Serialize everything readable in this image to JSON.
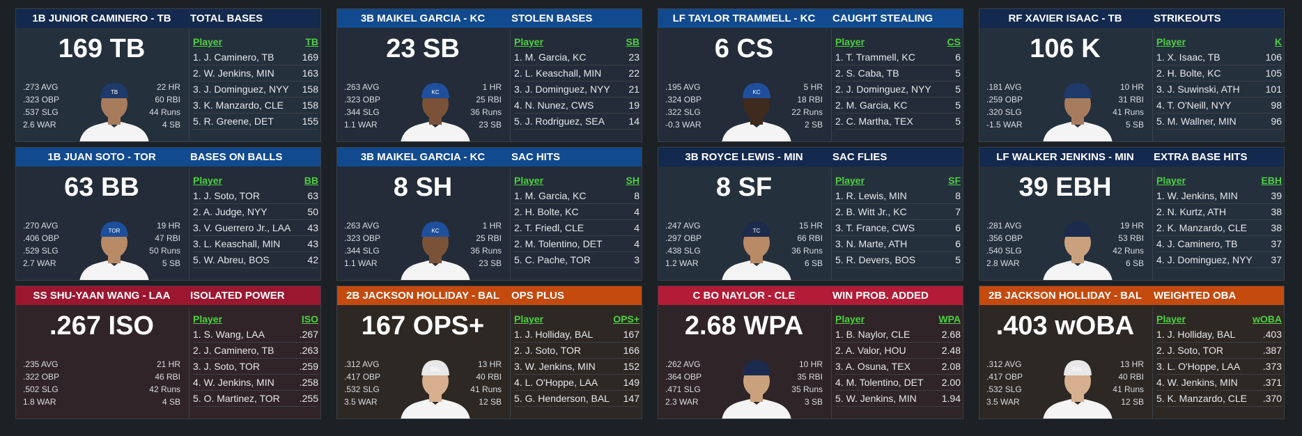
{
  "cards": [
    {
      "header": "1B JUNIOR CAMINERO - TB",
      "stat_title": "TOTAL BASES",
      "value": "169 TB",
      "avg": ".273 AVG",
      "obp": ".323 OBP",
      "slg": ".537 SLG",
      "war": "2.6 WAR",
      "hr": "22 HR",
      "rbi": "60 RBI",
      "runs": "44 Runs",
      "sb": "4 SB",
      "col_player": "Player",
      "col_stat": "TB",
      "rows": [
        {
          "name": "1. J. Caminero, TB",
          "val": "169"
        },
        {
          "name": "2. W. Jenkins, MIN",
          "val": "163"
        },
        {
          "name": "3. J. Dominguez, NYY",
          "val": "158"
        },
        {
          "name": "3. K. Manzardo, CLE",
          "val": "158"
        },
        {
          "name": "5. R. Greene, DET",
          "val": "155"
        }
      ],
      "theme": "navy",
      "cap": "#1d3a6b",
      "cap_logo": "TB",
      "shirt": "#f4f4f4",
      "skin": "#a77c5d"
    },
    {
      "header": "3B MAIKEL GARCIA - KC",
      "stat_title": "STOLEN BASES",
      "value": "23 SB",
      "avg": ".263 AVG",
      "obp": ".323 OBP",
      "slg": ".344 SLG",
      "war": "1.1 WAR",
      "hr": "1 HR",
      "rbi": "25 RBI",
      "runs": "36 Runs",
      "sb": "23 SB",
      "col_player": "Player",
      "col_stat": "SB",
      "rows": [
        {
          "name": "1. M. Garcia, KC",
          "val": "23"
        },
        {
          "name": "2. L. Keaschall, MIN",
          "val": "22"
        },
        {
          "name": "3. J. Dominguez, NYY",
          "val": "21"
        },
        {
          "name": "4. N. Nunez, CWS",
          "val": "19"
        },
        {
          "name": "5. J. Rodriguez, SEA",
          "val": "14"
        }
      ],
      "theme": "blue",
      "cap": "#1f4f9c",
      "cap_logo": "KC",
      "shirt": "#f4f4f4",
      "skin": "#7a5238"
    },
    {
      "header": "LF TAYLOR TRAMMELL - KC",
      "stat_title": "CAUGHT STEALING",
      "value": "6 CS",
      "avg": ".195 AVG",
      "obp": ".324 OBP",
      "slg": ".322 SLG",
      "war": "-0.3 WAR",
      "hr": "5 HR",
      "rbi": "18 RBI",
      "runs": "22 Runs",
      "sb": "2 SB",
      "col_player": "Player",
      "col_stat": "CS",
      "rows": [
        {
          "name": "1. T. Trammell, KC",
          "val": "6"
        },
        {
          "name": "2. S. Caba, TB",
          "val": "5"
        },
        {
          "name": "2. J. Dominguez, NYY",
          "val": "5"
        },
        {
          "name": "2. M. Garcia, KC",
          "val": "5"
        },
        {
          "name": "2. C. Martha, TEX",
          "val": "5"
        }
      ],
      "theme": "blue",
      "cap": "#1f4f9c",
      "cap_logo": "KC",
      "shirt": "#f4f4f4",
      "skin": "#3f2a1e"
    },
    {
      "header": "RF XAVIER ISAAC - TB",
      "stat_title": "STRIKEOUTS",
      "value": "106 K",
      "avg": ".181 AVG",
      "obp": ".259 OBP",
      "slg": ".320 SLG",
      "war": "-1.5 WAR",
      "hr": "10 HR",
      "rbi": "31 RBI",
      "runs": "41 Runs",
      "sb": "5 SB",
      "col_player": "Player",
      "col_stat": "K",
      "rows": [
        {
          "name": "1. X. Isaac, TB",
          "val": "106"
        },
        {
          "name": "2. H. Bolte, KC",
          "val": "105"
        },
        {
          "name": "3. J. Suwinski, ATH",
          "val": "101"
        },
        {
          "name": "4. T. O'Neill, NYY",
          "val": "98"
        },
        {
          "name": "5. M. Wallner, MIN",
          "val": "96"
        }
      ],
      "theme": "navy",
      "cap": "#1d3a6b",
      "cap_logo": "",
      "shirt": "#f4f4f4",
      "skin": "#a77c5d"
    },
    {
      "header": "1B JUAN SOTO - TOR",
      "stat_title": "BASES ON BALLS",
      "value": "63 BB",
      "avg": ".270 AVG",
      "obp": ".406 OBP",
      "slg": ".529 SLG",
      "war": "2.7 WAR",
      "hr": "19 HR",
      "rbi": "47 RBI",
      "runs": "50 Runs",
      "sb": "5 SB",
      "col_player": "Player",
      "col_stat": "BB",
      "rows": [
        {
          "name": "1. J. Soto, TOR",
          "val": "63"
        },
        {
          "name": "2. A. Judge, NYY",
          "val": "50"
        },
        {
          "name": "3. V. Guerrero Jr., LAA",
          "val": "43"
        },
        {
          "name": "3. L. Keaschall, MIN",
          "val": "43"
        },
        {
          "name": "5. W. Abreu, BOS",
          "val": "42"
        }
      ],
      "theme": "blue",
      "cap": "#1d4f9a",
      "cap_logo": "TOR",
      "shirt": "#f4f4f4",
      "skin": "#b88a66"
    },
    {
      "header": "3B MAIKEL GARCIA - KC",
      "stat_title": "SAC HITS",
      "value": "8 SH",
      "avg": ".263 AVG",
      "obp": ".323 OBP",
      "slg": ".344 SLG",
      "war": "1.1 WAR",
      "hr": "1 HR",
      "rbi": "25 RBI",
      "runs": "36 Runs",
      "sb": "23 SB",
      "col_player": "Player",
      "col_stat": "SH",
      "rows": [
        {
          "name": "1. M. Garcia, KC",
          "val": "8"
        },
        {
          "name": "2. H. Bolte, KC",
          "val": "4"
        },
        {
          "name": "2. T. Friedl, CLE",
          "val": "4"
        },
        {
          "name": "2. M. Tolentino, DET",
          "val": "4"
        },
        {
          "name": "5. C. Pache, TOR",
          "val": "3"
        }
      ],
      "theme": "blue",
      "cap": "#1f4f9c",
      "cap_logo": "KC",
      "shirt": "#f4f4f4",
      "skin": "#7a5238"
    },
    {
      "header": "3B ROYCE LEWIS - MIN",
      "stat_title": "SAC FLIES",
      "value": "8 SF",
      "avg": ".247 AVG",
      "obp": ".297 OBP",
      "slg": ".438 SLG",
      "war": "1.2 WAR",
      "hr": "15 HR",
      "rbi": "66 RBI",
      "runs": "36 Runs",
      "sb": "6 SB",
      "col_player": "Player",
      "col_stat": "SF",
      "rows": [
        {
          "name": "1. R. Lewis, MIN",
          "val": "8"
        },
        {
          "name": "2. B. Witt Jr., KC",
          "val": "7"
        },
        {
          "name": "3. T. France, CWS",
          "val": "6"
        },
        {
          "name": "3. N. Marte, ATH",
          "val": "6"
        },
        {
          "name": "5. R. Devers, BOS",
          "val": "5"
        }
      ],
      "theme": "navy",
      "cap": "#1c2b4d",
      "cap_logo": "TC",
      "shirt": "#f4f4f4",
      "skin": "#b88a66"
    },
    {
      "header": "LF WALKER JENKINS - MIN",
      "stat_title": "EXTRA BASE HITS",
      "value": "39 EBH",
      "avg": ".281 AVG",
      "obp": ".356 OBP",
      "slg": ".540 SLG",
      "war": "2.8 WAR",
      "hr": "19 HR",
      "rbi": "53 RBI",
      "runs": "42 Runs",
      "sb": "6 SB",
      "col_player": "Player",
      "col_stat": "EBH",
      "rows": [
        {
          "name": "1. W. Jenkins, MIN",
          "val": "39"
        },
        {
          "name": "2. N. Kurtz, ATH",
          "val": "38"
        },
        {
          "name": "2. K. Manzardo, CLE",
          "val": "38"
        },
        {
          "name": "4. J. Caminero, TB",
          "val": "37"
        },
        {
          "name": "4. J. Dominguez, NYY",
          "val": "37"
        }
      ],
      "theme": "navy",
      "cap": "#1c2b4d",
      "cap_logo": "",
      "shirt": "#f4f4f4",
      "skin": "#c9a27d"
    },
    {
      "header": "SS SHU-YAAN WANG - LAA",
      "stat_title": "ISOLATED POWER",
      "value": ".267 ISO",
      "avg": ".235 AVG",
      "obp": ".322 OBP",
      "slg": ".502 SLG",
      "war": "1.8 WAR",
      "hr": "21 HR",
      "rbi": "46 RBI",
      "runs": "42 Runs",
      "sb": "4 SB",
      "col_player": "Player",
      "col_stat": "ISO",
      "rows": [
        {
          "name": "1. S. Wang, LAA",
          "val": ".267"
        },
        {
          "name": "2. J. Caminero, TB",
          "val": ".263"
        },
        {
          "name": "3. J. Soto, TOR",
          "val": ".259"
        },
        {
          "name": "4. W. Jenkins, MIN",
          "val": ".258"
        },
        {
          "name": "5. O. Martinez, TOR",
          "val": ".255"
        }
      ],
      "theme": "red",
      "cap": "",
      "cap_logo": "",
      "shirt": "",
      "skin": ""
    },
    {
      "header": "2B JACKSON HOLLIDAY - BAL",
      "stat_title": "OPS PLUS",
      "value": "167 OPS+",
      "avg": ".312 AVG",
      "obp": ".417 OBP",
      "slg": ".532 SLG",
      "war": "3.5 WAR",
      "hr": "13 HR",
      "rbi": "40 RBI",
      "runs": "41 Runs",
      "sb": "12 SB",
      "col_player": "Player",
      "col_stat": "OPS+",
      "rows": [
        {
          "name": "1. J. Holliday, BAL",
          "val": "167"
        },
        {
          "name": "2. J. Soto, TOR",
          "val": "166"
        },
        {
          "name": "3. W. Jenkins, MIN",
          "val": "152"
        },
        {
          "name": "4. L. O'Hoppe, LAA",
          "val": "149"
        },
        {
          "name": "5. G. Henderson, BAL",
          "val": "147"
        }
      ],
      "theme": "orange",
      "cap": "#e8e8e8",
      "cap_logo": "BAL",
      "shirt": "#f4f4f4",
      "skin": "#d7b08f"
    },
    {
      "header": "C BO NAYLOR - CLE",
      "stat_title": "WIN PROB. ADDED",
      "value": "2.68 WPA",
      "avg": ".262 AVG",
      "obp": ".364 OBP",
      "slg": ".471 SLG",
      "war": "2.3 WAR",
      "hr": "10 HR",
      "rbi": "35 RBI",
      "runs": "35 Runs",
      "sb": "3 SB",
      "col_player": "Player",
      "col_stat": "WPA",
      "rows": [
        {
          "name": "1. B. Naylor, CLE",
          "val": "2.68"
        },
        {
          "name": "2. A. Valor, HOU",
          "val": "2.48"
        },
        {
          "name": "3. A. Osuna, TEX",
          "val": "2.08"
        },
        {
          "name": "4. M. Tolentino, DET",
          "val": "2.00"
        },
        {
          "name": "5. W. Jenkins, MIN",
          "val": "1.94"
        }
      ],
      "theme": "crimson",
      "cap": "#1c2b4d",
      "cap_logo": "",
      "shirt": "#f4f4f4",
      "skin": "#c9a27d"
    },
    {
      "header": "2B JACKSON HOLLIDAY - BAL",
      "stat_title": "WEIGHTED OBA",
      "value": ".403 wOBA",
      "avg": ".312 AVG",
      "obp": ".417 OBP",
      "slg": ".532 SLG",
      "war": "3.5 WAR",
      "hr": "13 HR",
      "rbi": "40 RBI",
      "runs": "41 Runs",
      "sb": "12 SB",
      "col_player": "Player",
      "col_stat": "wOBA",
      "rows": [
        {
          "name": "1. J. Holliday, BAL",
          "val": ".403"
        },
        {
          "name": "2. J. Soto, TOR",
          "val": ".387"
        },
        {
          "name": "3. L. O'Hoppe, LAA",
          "val": ".373"
        },
        {
          "name": "4. W. Jenkins, MIN",
          "val": ".371"
        },
        {
          "name": "5. K. Manzardo, CLE",
          "val": ".370"
        }
      ],
      "theme": "orange",
      "cap": "#e8e8e8",
      "cap_logo": "BAL",
      "shirt": "#f4f4f4",
      "skin": "#d7b08f"
    }
  ],
  "themes": {
    "navy": {
      "head": "#13294e",
      "body": "#25303d"
    },
    "blue": {
      "head": "#114a8e",
      "body": "#232c38"
    },
    "red": {
      "head": "#9b1730",
      "body": "#302428"
    },
    "orange": {
      "head": "#c44a0e",
      "body": "#2e2824"
    },
    "crimson": {
      "head": "#b31b36",
      "body": "#2f2427"
    }
  }
}
